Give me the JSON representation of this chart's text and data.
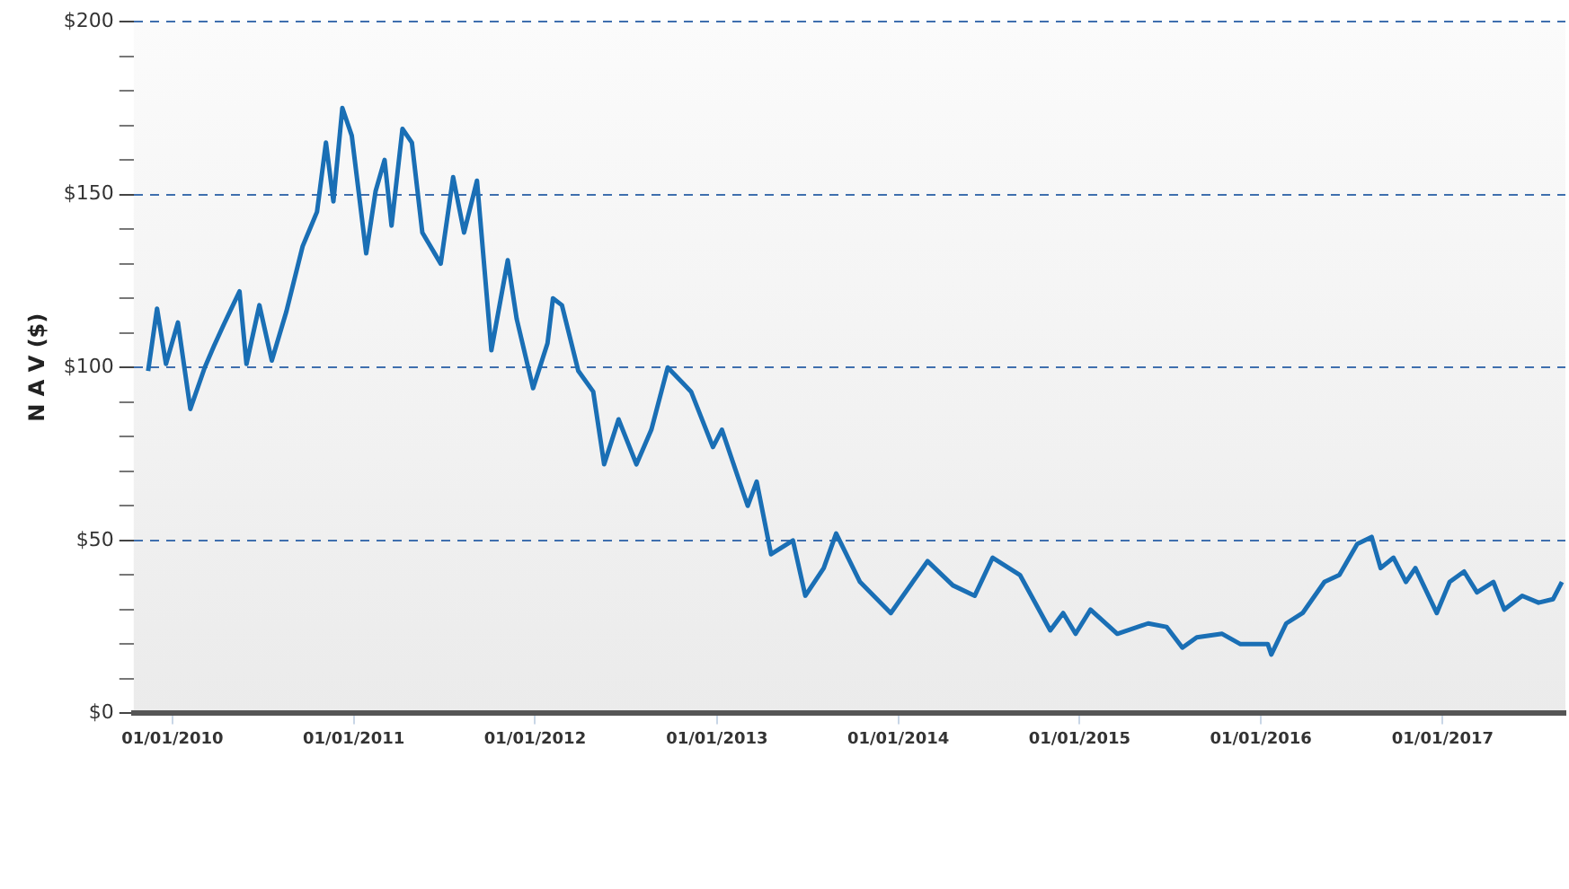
{
  "chart_data": {
    "type": "line",
    "ylabel": "N A V ($)",
    "grid": "y",
    "legend": false,
    "marker": "none",
    "line_style": "solid",
    "xlim": [
      "2009-10-15",
      "2017-09-05"
    ],
    "xticks": [
      {
        "value": "2010-01-01",
        "label": "01/01/2010"
      },
      {
        "value": "2011-01-01",
        "label": "01/01/2011"
      },
      {
        "value": "2012-01-01",
        "label": "01/01/2012"
      },
      {
        "value": "2013-01-01",
        "label": "01/01/2013"
      },
      {
        "value": "2014-01-01",
        "label": "01/01/2014"
      },
      {
        "value": "2015-01-01",
        "label": "01/01/2015"
      },
      {
        "value": "2016-01-01",
        "label": "01/01/2016"
      },
      {
        "value": "2017-01-01",
        "label": "01/01/2017"
      }
    ],
    "ylim": [
      0,
      200
    ],
    "yticks": [
      {
        "value": 0,
        "label": "$0"
      },
      {
        "value": 10,
        "label": null
      },
      {
        "value": 20,
        "label": null
      },
      {
        "value": 30,
        "label": null
      },
      {
        "value": 40,
        "label": null
      },
      {
        "value": 50,
        "label": "$50"
      },
      {
        "value": 60,
        "label": null
      },
      {
        "value": 70,
        "label": null
      },
      {
        "value": 80,
        "label": null
      },
      {
        "value": 90,
        "label": null
      },
      {
        "value": 100,
        "label": "$100"
      },
      {
        "value": 110,
        "label": null
      },
      {
        "value": 120,
        "label": null
      },
      {
        "value": 130,
        "label": null
      },
      {
        "value": 140,
        "label": null
      },
      {
        "value": 150,
        "label": "$150"
      },
      {
        "value": 160,
        "label": null
      },
      {
        "value": 170,
        "label": null
      },
      {
        "value": 180,
        "label": null
      },
      {
        "value": 190,
        "label": null
      },
      {
        "value": 200,
        "label": "$200"
      }
    ],
    "x": [
      "2009-11-13",
      "2009-12-01",
      "2009-12-19",
      "2010-01-12",
      "2010-02-06",
      "2010-03-07",
      "2010-03-25",
      "2010-04-13",
      "2010-05-16",
      "2010-05-30",
      "2010-06-25",
      "2010-07-20",
      "2010-08-18",
      "2010-09-20",
      "2010-10-19",
      "2010-11-06",
      "2010-11-21",
      "2010-12-09",
      "2010-12-28",
      "2011-01-26",
      "2011-02-14",
      "2011-03-04",
      "2011-03-18",
      "2011-04-09",
      "2011-04-28",
      "2011-05-19",
      "2011-06-25",
      "2011-07-20",
      "2011-08-11",
      "2011-09-06",
      "2011-10-05",
      "2011-11-07",
      "2011-11-25",
      "2011-12-28",
      "2012-01-26",
      "2012-02-06",
      "2012-02-24",
      "2012-03-28",
      "2012-04-27",
      "2012-05-19",
      "2012-06-17",
      "2012-07-23",
      "2012-08-22",
      "2012-09-24",
      "2012-11-10",
      "2012-12-24",
      "2013-01-11",
      "2013-03-04",
      "2013-03-22",
      "2013-04-20",
      "2013-06-03",
      "2013-06-28",
      "2013-08-04",
      "2013-08-29",
      "2013-10-16",
      "2013-12-17",
      "2014-03-01",
      "2014-04-21",
      "2014-06-04",
      "2014-07-10",
      "2014-09-03",
      "2014-11-03",
      "2014-11-29",
      "2014-12-24",
      "2015-01-23",
      "2015-03-18",
      "2015-05-19",
      "2015-06-25",
      "2015-07-27",
      "2015-08-25",
      "2015-10-15",
      "2015-11-21",
      "2016-01-15",
      "2016-01-22",
      "2016-02-21",
      "2016-03-25",
      "2016-05-08",
      "2016-06-07",
      "2016-07-13",
      "2016-08-11",
      "2016-08-29",
      "2016-09-24",
      "2016-10-19",
      "2016-11-07",
      "2016-12-20",
      "2017-01-15",
      "2017-02-13",
      "2017-03-11",
      "2017-04-13",
      "2017-05-05",
      "2017-06-10",
      "2017-07-13",
      "2017-08-11",
      "2017-08-29"
    ],
    "series": [
      {
        "color": "#1a6fb5",
        "values": [
          99,
          117,
          101,
          113,
          88,
          100,
          106,
          112,
          122,
          101,
          118,
          102,
          116,
          135,
          145,
          165,
          148,
          175,
          167,
          133,
          151,
          160,
          141,
          169,
          165,
          139,
          130,
          155,
          139,
          154,
          105,
          131,
          114,
          94,
          107,
          120,
          118,
          99,
          93,
          72,
          85,
          72,
          82,
          100,
          93,
          77,
          82,
          60,
          67,
          46,
          50,
          34,
          42,
          52,
          38,
          29,
          44,
          37,
          34,
          45,
          40,
          24,
          29,
          23,
          30,
          23,
          26,
          25,
          19,
          22,
          23,
          20,
          20,
          17,
          26,
          29,
          38,
          40,
          49,
          51,
          42,
          45,
          38,
          42,
          29,
          38,
          41,
          35,
          38,
          30,
          34,
          32,
          33,
          38
        ]
      }
    ]
  }
}
